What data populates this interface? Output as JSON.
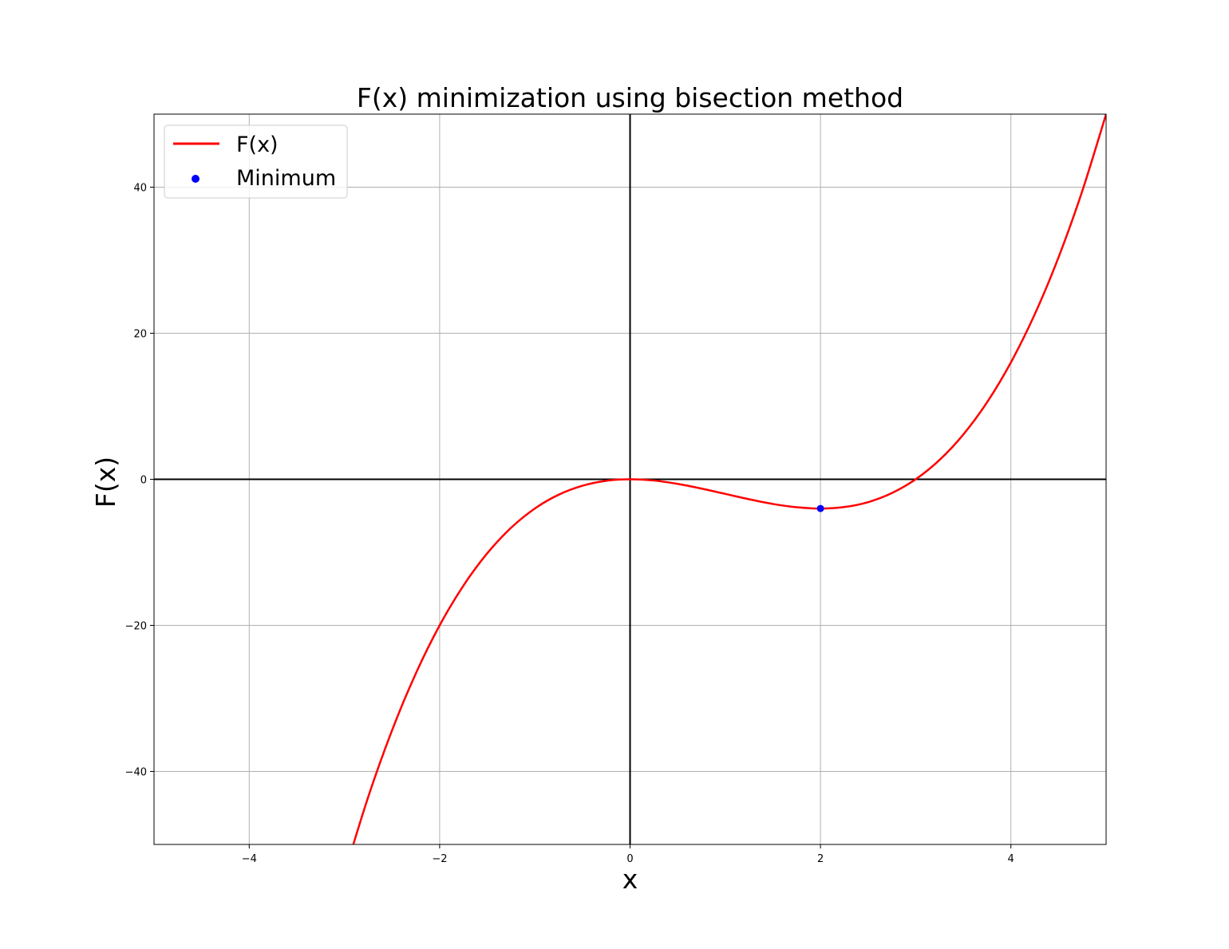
{
  "chart_data": {
    "type": "line",
    "title": "F(x) minimization using bisection method",
    "xlabel": "x",
    "ylabel": "F(x)",
    "xlim": [
      -5,
      5
    ],
    "ylim": [
      -50,
      50
    ],
    "xticks": [
      -4,
      -2,
      0,
      2,
      4
    ],
    "xtick_labels": [
      "−4",
      "−2",
      "0",
      "2",
      "4"
    ],
    "yticks": [
      -40,
      -20,
      0,
      20,
      40
    ],
    "ytick_labels": [
      "−40",
      "−20",
      "0",
      "20",
      "40"
    ],
    "grid": true,
    "legend_position": "upper-left",
    "series": [
      {
        "name": "F(x)",
        "kind": "line",
        "color": "#ff0000",
        "x": [
          -3.0,
          -2.75,
          -2.5,
          -2.25,
          -2.0,
          -1.75,
          -1.5,
          -1.25,
          -1.0,
          -0.75,
          -0.5,
          -0.25,
          0.0,
          0.25,
          0.5,
          0.75,
          1.0,
          1.25,
          1.5,
          1.75,
          2.0,
          2.25,
          2.5,
          2.75,
          3.0,
          3.25,
          3.5,
          3.75,
          4.0,
          4.25,
          4.5,
          4.75,
          5.0
        ],
        "y": [
          -54.0,
          -43.48,
          -34.38,
          -26.58,
          -20.0,
          -14.55,
          -10.13,
          -6.64,
          -4.0,
          -2.11,
          -0.88,
          -0.2,
          0.0,
          -0.17,
          -0.63,
          -1.27,
          -2.0,
          -2.73,
          -3.38,
          -3.83,
          -4.0,
          -3.8,
          -3.13,
          -1.89,
          0.0,
          2.64,
          6.13,
          10.55,
          16.0,
          22.58,
          30.38,
          39.48,
          50.0
        ]
      },
      {
        "name": "Minimum",
        "kind": "scatter",
        "color": "#0000ff",
        "x": [
          2.0
        ],
        "y": [
          -4.0
        ]
      }
    ],
    "axis_lines_color": "#000000",
    "grid_color": "#b0b0b0"
  }
}
